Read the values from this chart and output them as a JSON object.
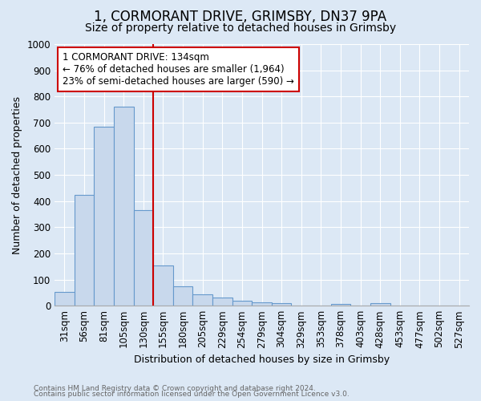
{
  "title1": "1, CORMORANT DRIVE, GRIMSBY, DN37 9PA",
  "title2": "Size of property relative to detached houses in Grimsby",
  "xlabel": "Distribution of detached houses by size in Grimsby",
  "ylabel": "Number of detached properties",
  "footnote1": "Contains HM Land Registry data © Crown copyright and database right 2024.",
  "footnote2": "Contains public sector information licensed under the Open Government Licence v3.0.",
  "categories": [
    "31sqm",
    "56sqm",
    "81sqm",
    "105sqm",
    "130sqm",
    "155sqm",
    "180sqm",
    "205sqm",
    "229sqm",
    "254sqm",
    "279sqm",
    "304sqm",
    "329sqm",
    "353sqm",
    "378sqm",
    "403sqm",
    "428sqm",
    "453sqm",
    "477sqm",
    "502sqm",
    "527sqm"
  ],
  "values": [
    52,
    425,
    685,
    760,
    365,
    155,
    75,
    42,
    30,
    18,
    12,
    10,
    0,
    0,
    8,
    0,
    10,
    0,
    0,
    0,
    0
  ],
  "bar_color": "#c8d8ec",
  "bar_edge_color": "#6699cc",
  "ylim": [
    0,
    1000
  ],
  "yticks": [
    0,
    100,
    200,
    300,
    400,
    500,
    600,
    700,
    800,
    900,
    1000
  ],
  "vline_x_idx": 4,
  "vline_color": "#cc0000",
  "annotation_text": "1 CORMORANT DRIVE: 134sqm\n← 76% of detached houses are smaller (1,964)\n23% of semi-detached houses are larger (590) →",
  "annotation_box_color": "#cc0000",
  "bg_color": "#dce8f5",
  "grid_color": "#ffffff",
  "title1_fontsize": 12,
  "title2_fontsize": 10,
  "axis_label_fontsize": 9,
  "tick_fontsize": 8.5,
  "footnote_color": "#666666",
  "footnote_fontsize": 6.5
}
